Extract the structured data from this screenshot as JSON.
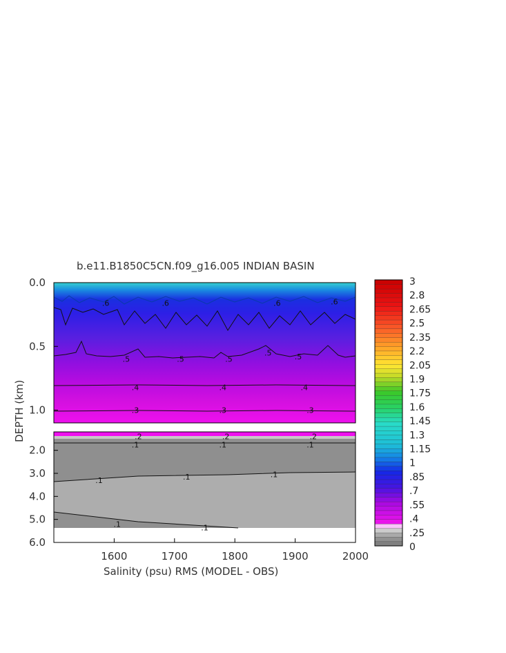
{
  "chart_data": {
    "type": "heatmap",
    "title": "b.e11.B1850C5CN.f09_g16.005 INDIAN BASIN",
    "xlabel": "Salinity (psu) RMS (MODEL - OBS)",
    "ylabel": "DEPTH (km)",
    "xlim": [
      1500,
      2000
    ],
    "x_ticks": [
      "1600",
      "1700",
      "1800",
      "1900",
      "2000"
    ],
    "panels": [
      {
        "name": "upper",
        "ylim": [
          0.0,
          1.1
        ],
        "y_ticks": [
          "0.0",
          "0.5",
          "1.0"
        ],
        "y_tick_values": [
          0.0,
          0.5,
          1.0
        ],
        "contour_labels": [
          {
            "text": ".6",
            "x": 1586,
            "y": 0.16
          },
          {
            "text": ".6",
            "x": 1685,
            "y": 0.16
          },
          {
            "text": ".6",
            "x": 1870,
            "y": 0.16
          },
          {
            "text": ".6",
            "x": 1965,
            "y": 0.15
          },
          {
            "text": ".5",
            "x": 1620,
            "y": 0.6
          },
          {
            "text": ".5",
            "x": 1710,
            "y": 0.6
          },
          {
            "text": ".5",
            "x": 1790,
            "y": 0.6
          },
          {
            "text": ".5",
            "x": 1855,
            "y": 0.55
          },
          {
            "text": ".5",
            "x": 1905,
            "y": 0.58
          },
          {
            "text": ".4",
            "x": 1635,
            "y": 0.82
          },
          {
            "text": ".4",
            "x": 1780,
            "y": 0.82
          },
          {
            "text": ".4",
            "x": 1915,
            "y": 0.82
          },
          {
            "text": ".3",
            "x": 1635,
            "y": 1.0
          },
          {
            "text": ".3",
            "x": 1780,
            "y": 1.0
          },
          {
            "text": ".3",
            "x": 1925,
            "y": 1.0
          }
        ]
      },
      {
        "name": "lower",
        "ylim": [
          1.2,
          6.0
        ],
        "y_ticks": [
          "2.0",
          "3.0",
          "4.0",
          "5.0",
          "6.0"
        ],
        "y_tick_values": [
          2.0,
          3.0,
          4.0,
          5.0,
          6.0
        ],
        "contour_labels": [
          {
            "text": ".2",
            "x": 1640,
            "y": 1.4
          },
          {
            "text": ".2",
            "x": 1785,
            "y": 1.4
          },
          {
            "text": ".2",
            "x": 1930,
            "y": 1.4
          },
          {
            "text": ".1",
            "x": 1635,
            "y": 1.75
          },
          {
            "text": ".1",
            "x": 1780,
            "y": 1.75
          },
          {
            "text": ".1",
            "x": 1925,
            "y": 1.75
          },
          {
            "text": ".1",
            "x": 1575,
            "y": 3.3
          },
          {
            "text": ".1",
            "x": 1720,
            "y": 3.15
          },
          {
            "text": ".1",
            "x": 1865,
            "y": 3.05
          },
          {
            "text": ".1",
            "x": 1605,
            "y": 5.2
          },
          {
            "text": ".1",
            "x": 1750,
            "y": 5.35
          }
        ]
      }
    ],
    "colorbar": {
      "min": 0,
      "max": 3,
      "tick_labels": [
        "3",
        "2.8",
        "2.65",
        "2.5",
        "2.35",
        "2.2",
        "2.05",
        "1.9",
        "1.75",
        "1.6",
        "1.45",
        "1.3",
        "1.15",
        "1",
        ".85",
        ".7",
        ".55",
        ".4",
        ".25",
        "0"
      ]
    }
  }
}
